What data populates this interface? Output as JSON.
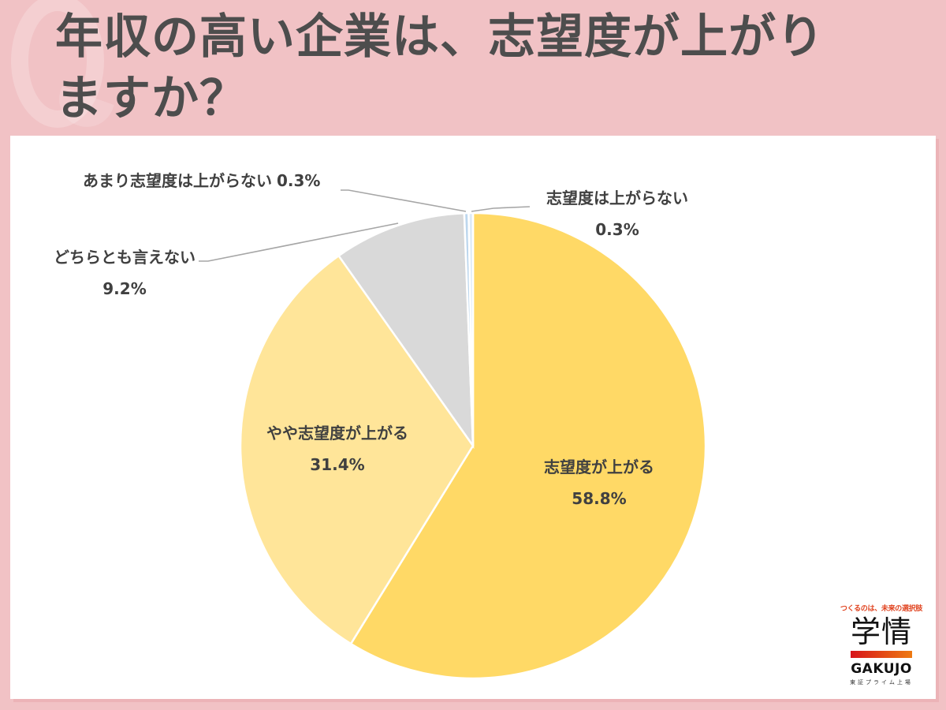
{
  "header": {
    "watermark": "Q",
    "title_line1": "年収の高い企業は、志望度が上がり",
    "title_line2": "ますか？"
  },
  "chart_data": {
    "type": "pie",
    "title": "年収の高い企業は、志望度が上がりますか？",
    "start_angle_deg": 0,
    "direction": "clockwise",
    "categories": [
      "志望度が上がる",
      "やや志望度が上がる",
      "どちらとも言えない",
      "あまり志望度は上がらない",
      "志望度は上がらない"
    ],
    "values": [
      58.8,
      31.4,
      9.2,
      0.3,
      0.3
    ],
    "unit": "%",
    "colors": [
      "#ffd966",
      "#ffe599",
      "#d9d9d9",
      "#bdd7ee",
      "#ddebf7"
    ],
    "labels": [
      {
        "name": "志望度が上がる",
        "value": "58.8%"
      },
      {
        "name": "やや志望度が上がる",
        "value": "31.4%"
      },
      {
        "name": "どちらとも言えない",
        "value": "9.2%"
      },
      {
        "name": "あまり志望度は上がらない",
        "value": "0.3%"
      },
      {
        "name": "志望度は上がらない",
        "value": "0.3%"
      }
    ],
    "legend": "none (data labels with leader lines)"
  },
  "colors": {
    "background": "#f1c2c5",
    "card": "#ffffff",
    "title_text": "#4d4d4d",
    "label_text": "#404040",
    "leader_line": "#a6a6a6"
  },
  "logo": {
    "tagline": "つくるのは、未来の選択肢",
    "kanji": "学情",
    "name": "GAKUJO",
    "sub": "東証プライム上場"
  }
}
